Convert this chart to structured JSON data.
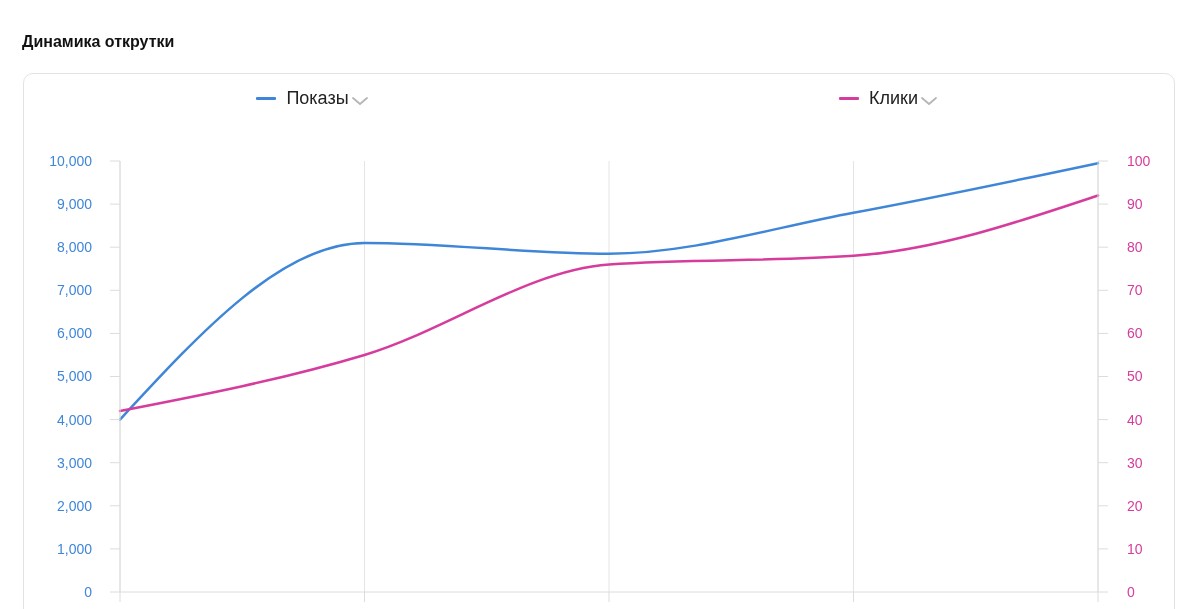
{
  "chart_data": {
    "type": "line",
    "title": "Динамика открутки",
    "categories": [
      null,
      null,
      null,
      null,
      null
    ],
    "series": [
      {
        "name": "Показы",
        "color": "#3f86d8",
        "values": [
          4000,
          8100,
          7850,
          8800,
          9950
        ]
      },
      {
        "name": "Клики",
        "color": "#d63c9c",
        "axis": "y2",
        "values": [
          42,
          55,
          76,
          78,
          92
        ]
      }
    ],
    "ylim": [
      0,
      10000
    ],
    "yticks": [
      0,
      {
        "value": 1000,
        "label": "1,000"
      },
      {
        "value": 2000,
        "label": "2,000"
      },
      {
        "value": 3000,
        "label": "3,000"
      },
      {
        "value": 4000,
        "label": "4,000"
      },
      {
        "value": 5000,
        "label": "5,000"
      },
      {
        "value": 6000,
        "label": "6,000"
      },
      {
        "value": 7000,
        "label": "7,000"
      },
      {
        "value": 8000,
        "label": "8,000"
      },
      {
        "value": 9000,
        "label": "9,000"
      },
      {
        "value": 10000,
        "label": "10,000"
      }
    ],
    "y2lim": [
      0,
      100
    ],
    "y2ticks": [
      0,
      10,
      20,
      30,
      40,
      50,
      60,
      70,
      80,
      90,
      100
    ],
    "grid": "x",
    "legend": "top",
    "marker": "none"
  }
}
